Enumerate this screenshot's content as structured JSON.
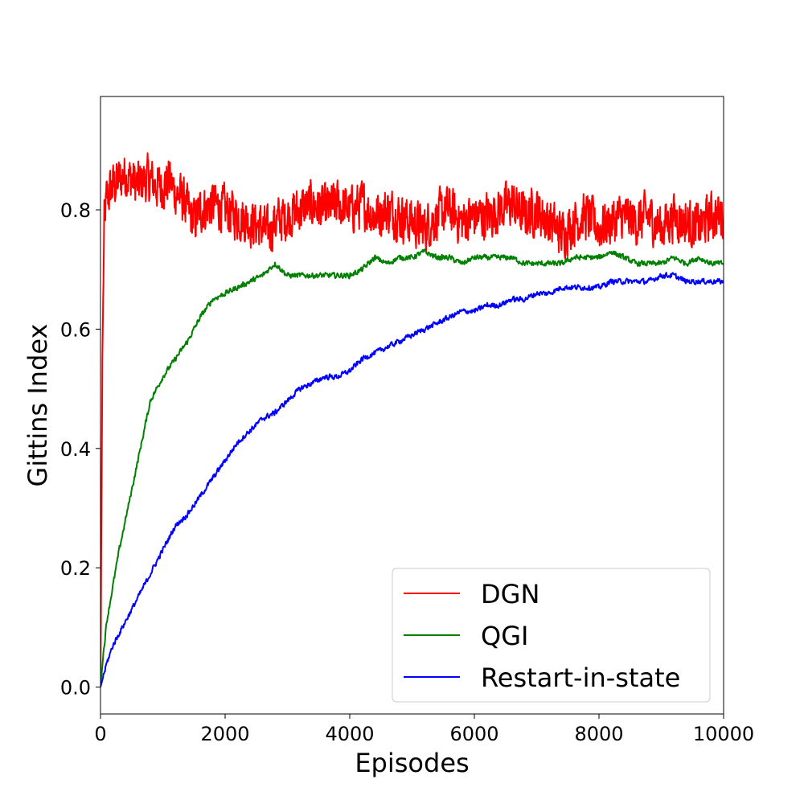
{
  "chart_data": {
    "type": "line",
    "title": "",
    "xlabel": "Episodes",
    "ylabel": "Gittins Index",
    "xlim": [
      0,
      10000
    ],
    "ylim": [
      -0.045,
      0.99
    ],
    "xticks": [
      0,
      2000,
      4000,
      6000,
      8000,
      10000
    ],
    "xtick_labels": [
      "0",
      "2000",
      "4000",
      "6000",
      "8000",
      "10000"
    ],
    "yticks": [
      0.0,
      0.2,
      0.4,
      0.6,
      0.8
    ],
    "ytick_labels": [
      "0.0",
      "0.2",
      "0.4",
      "0.6",
      "0.8"
    ],
    "grid": false,
    "legend_position": "lower-right",
    "series": [
      {
        "name": "DGN",
        "color": "#ff0000",
        "noise": "high",
        "x": [
          0,
          30,
          60,
          100,
          150,
          200,
          300,
          400,
          500,
          600,
          700,
          800,
          900,
          1000,
          1100,
          1200,
          1300,
          1400,
          1500,
          1600,
          1800,
          2000,
          2200,
          2400,
          2600,
          2700,
          2800,
          3000,
          3200,
          3400,
          3600,
          3800,
          4000,
          4200,
          4400,
          4600,
          4800,
          5000,
          5200,
          5400,
          5600,
          5800,
          6000,
          6200,
          6400,
          6600,
          6800,
          7000,
          7200,
          7400,
          7600,
          7800,
          8000,
          8200,
          8400,
          8600,
          8800,
          9000,
          9200,
          9400,
          9600,
          9800,
          10000
        ],
        "y": [
          0.0,
          0.55,
          0.78,
          0.82,
          0.83,
          0.84,
          0.85,
          0.86,
          0.85,
          0.84,
          0.85,
          0.85,
          0.84,
          0.84,
          0.85,
          0.83,
          0.82,
          0.8,
          0.78,
          0.8,
          0.81,
          0.8,
          0.79,
          0.78,
          0.77,
          0.76,
          0.78,
          0.79,
          0.8,
          0.81,
          0.8,
          0.81,
          0.8,
          0.81,
          0.79,
          0.8,
          0.79,
          0.78,
          0.77,
          0.79,
          0.8,
          0.78,
          0.79,
          0.79,
          0.8,
          0.81,
          0.79,
          0.8,
          0.78,
          0.76,
          0.78,
          0.79,
          0.77,
          0.78,
          0.79,
          0.78,
          0.79,
          0.77,
          0.79,
          0.78,
          0.77,
          0.79,
          0.79
        ]
      },
      {
        "name": "QGI",
        "color": "#008000",
        "noise": "low",
        "x": [
          0,
          50,
          100,
          200,
          300,
          400,
          500,
          600,
          700,
          800,
          900,
          1000,
          1200,
          1400,
          1600,
          1800,
          2000,
          2200,
          2400,
          2600,
          2800,
          3000,
          3200,
          3400,
          3600,
          3800,
          4000,
          4200,
          4400,
          4600,
          4800,
          5000,
          5200,
          5400,
          5600,
          5800,
          6000,
          6200,
          6400,
          6600,
          6800,
          7000,
          7200,
          7400,
          7600,
          7800,
          8000,
          8200,
          8400,
          8600,
          8800,
          9000,
          9200,
          9400,
          9600,
          9800,
          10000
        ],
        "y": [
          0.0,
          0.06,
          0.11,
          0.17,
          0.23,
          0.28,
          0.33,
          0.38,
          0.43,
          0.48,
          0.5,
          0.52,
          0.55,
          0.58,
          0.62,
          0.65,
          0.66,
          0.67,
          0.68,
          0.69,
          0.71,
          0.69,
          0.69,
          0.69,
          0.69,
          0.69,
          0.69,
          0.7,
          0.72,
          0.71,
          0.72,
          0.72,
          0.73,
          0.72,
          0.72,
          0.71,
          0.72,
          0.72,
          0.72,
          0.72,
          0.71,
          0.71,
          0.71,
          0.71,
          0.72,
          0.72,
          0.72,
          0.73,
          0.72,
          0.71,
          0.71,
          0.71,
          0.72,
          0.71,
          0.72,
          0.71,
          0.71
        ]
      },
      {
        "name": "Restart-in-state",
        "color": "#0000ff",
        "noise": "low",
        "x": [
          0,
          100,
          200,
          300,
          400,
          500,
          600,
          700,
          800,
          900,
          1000,
          1200,
          1400,
          1600,
          1800,
          2000,
          2200,
          2400,
          2600,
          2800,
          3000,
          3200,
          3400,
          3600,
          3800,
          4000,
          4200,
          4400,
          4600,
          4800,
          5000,
          5200,
          5400,
          5600,
          5800,
          6000,
          6200,
          6400,
          6600,
          6800,
          7000,
          7200,
          7400,
          7600,
          7800,
          8000,
          8200,
          8400,
          8600,
          8800,
          9000,
          9200,
          9400,
          9600,
          9800,
          10000
        ],
        "y": [
          0.0,
          0.04,
          0.07,
          0.09,
          0.11,
          0.13,
          0.15,
          0.17,
          0.19,
          0.21,
          0.23,
          0.27,
          0.29,
          0.32,
          0.35,
          0.38,
          0.41,
          0.43,
          0.45,
          0.46,
          0.48,
          0.5,
          0.51,
          0.52,
          0.52,
          0.53,
          0.55,
          0.56,
          0.57,
          0.58,
          0.59,
          0.6,
          0.61,
          0.62,
          0.63,
          0.63,
          0.64,
          0.64,
          0.65,
          0.65,
          0.66,
          0.66,
          0.67,
          0.67,
          0.67,
          0.67,
          0.68,
          0.68,
          0.68,
          0.68,
          0.69,
          0.69,
          0.68,
          0.68,
          0.68,
          0.68
        ]
      }
    ]
  }
}
